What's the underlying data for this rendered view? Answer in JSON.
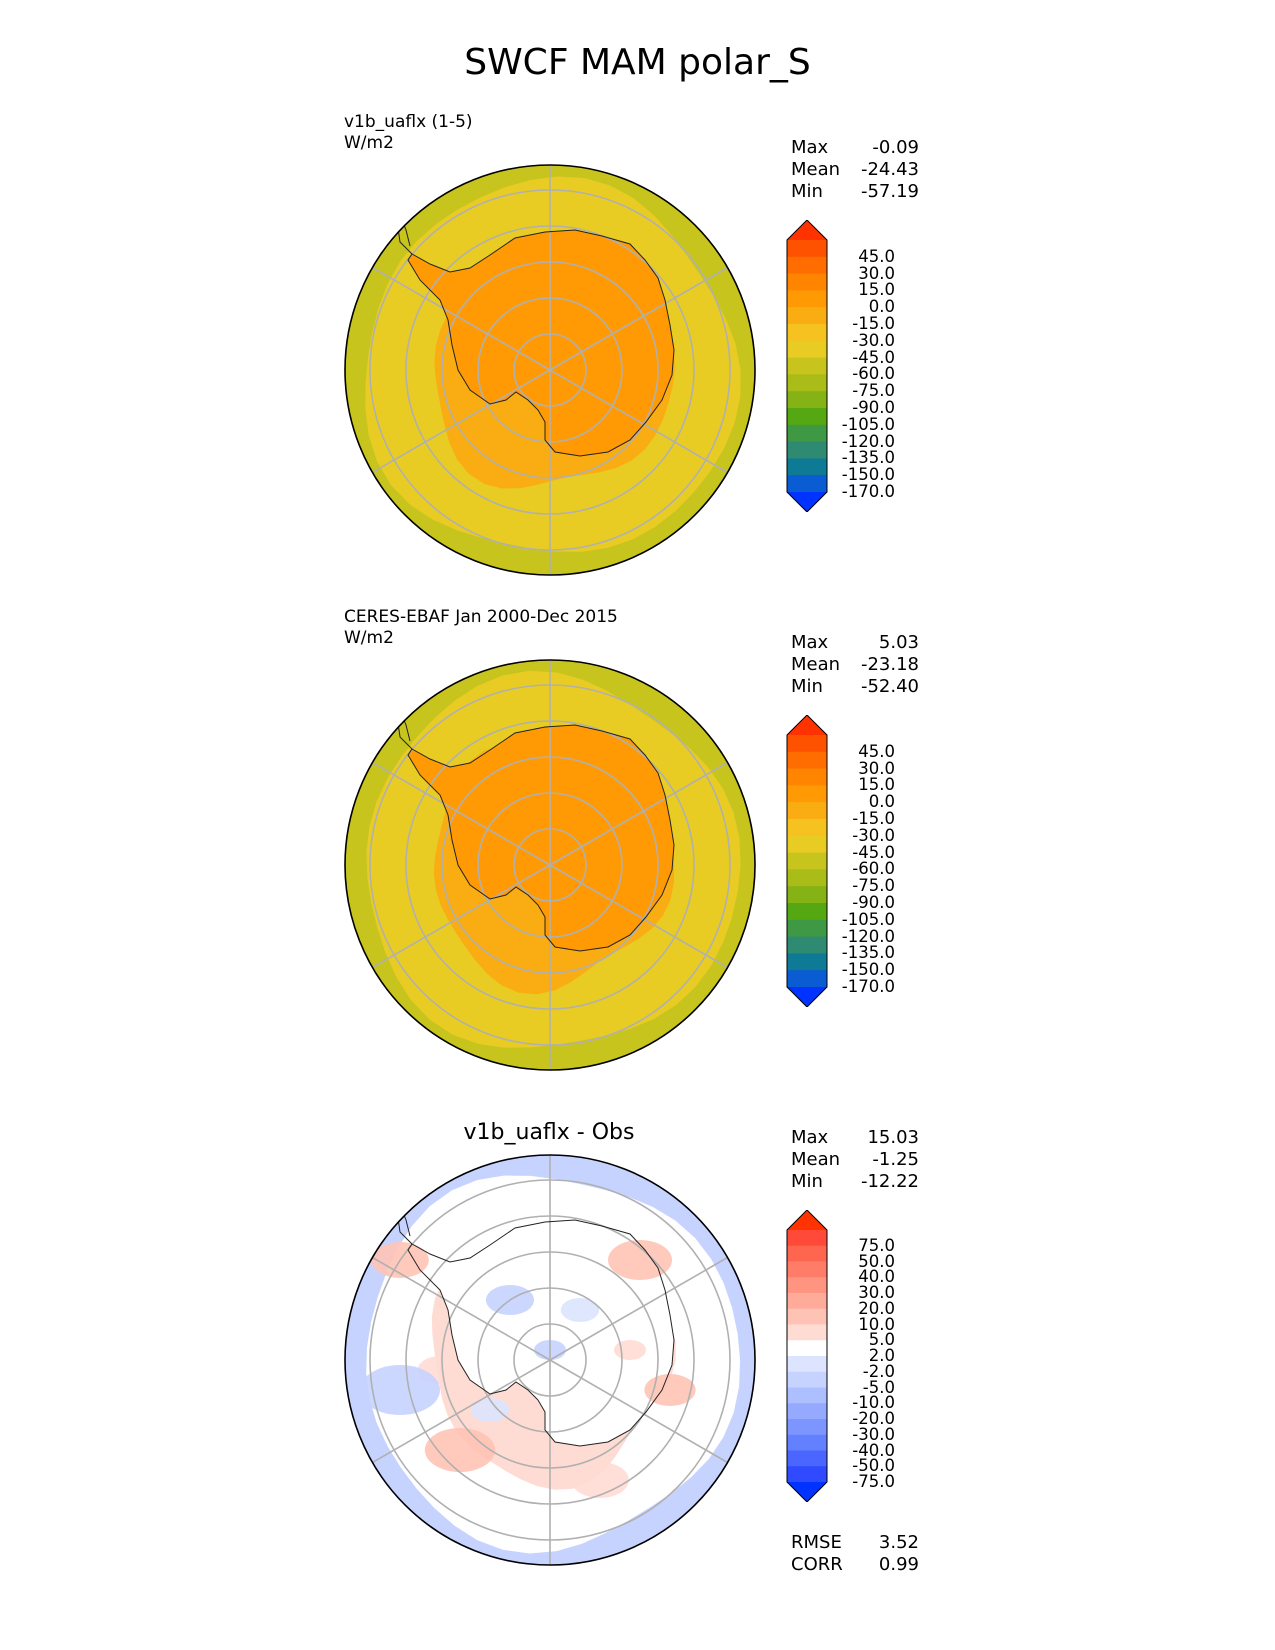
{
  "title": "SWCF MAM polar_S",
  "panels": [
    {
      "label_line1": "v1b_uaflx (1-5)",
      "label_line2": "W/m2",
      "stats": {
        "max_label": "Max",
        "max": "-0.09",
        "mean_label": "Mean",
        "mean": "-24.43",
        "min_label": "Min",
        "min": "-57.19"
      },
      "colorbar": {
        "levels": [
          "45.0",
          "30.0",
          "15.0",
          "0.0",
          "-15.0",
          "-30.0",
          "-45.0",
          "-60.0",
          "-75.0",
          "-90.0",
          "-105.0",
          "-120.0",
          "-135.0",
          "-150.0",
          "-170.0"
        ],
        "colors": [
          "#ff3300",
          "#ff5200",
          "#ff6c00",
          "#ff8400",
          "#ff9a05",
          "#f9ad12",
          "#f5c220",
          "#e8cc24",
          "#c8c41e",
          "#a9bc18",
          "#85b215",
          "#56a812",
          "#3f9843",
          "#2f8a72",
          "#0f7a95",
          "#0a5cd3",
          "#0033ff"
        ]
      },
      "map": {
        "ocean_color": "#e8cc24",
        "outer_band_color": "#c8c41e",
        "inner_band_color": "#f9ad12",
        "continent_color": "#ff9a05"
      }
    },
    {
      "label_line1": "CERES-EBAF Jan 2000-Dec 2015",
      "label_line2": "W/m2",
      "stats": {
        "max_label": "Max",
        "max": "5.03",
        "mean_label": "Mean",
        "mean": "-23.18",
        "min_label": "Min",
        "min": "-52.40"
      },
      "colorbar": {
        "levels": [
          "45.0",
          "30.0",
          "15.0",
          "0.0",
          "-15.0",
          "-30.0",
          "-45.0",
          "-60.0",
          "-75.0",
          "-90.0",
          "-105.0",
          "-120.0",
          "-135.0",
          "-150.0",
          "-170.0"
        ],
        "colors": [
          "#ff3300",
          "#ff5200",
          "#ff6c00",
          "#ff8400",
          "#ff9a05",
          "#f9ad12",
          "#f5c220",
          "#e8cc24",
          "#c8c41e",
          "#a9bc18",
          "#85b215",
          "#56a812",
          "#3f9843",
          "#2f8a72",
          "#0f7a95",
          "#0a5cd3",
          "#0033ff"
        ]
      },
      "map": {
        "ocean_color": "#e8cc24",
        "outer_band_color": "#c8c41e",
        "inner_band_color": "#f9ad12",
        "continent_color": "#ff9a05"
      }
    },
    {
      "title": "v1b_uaflx - Obs",
      "stats": {
        "max_label": "Max",
        "max": "15.03",
        "mean_label": "Mean",
        "mean": "-1.25",
        "min_label": "Min",
        "min": "-12.22"
      },
      "colorbar": {
        "levels": [
          "75.0",
          "50.0",
          "40.0",
          "30.0",
          "20.0",
          "10.0",
          "5.0",
          "2.0",
          "-2.0",
          "-5.0",
          "-10.0",
          "-20.0",
          "-30.0",
          "-40.0",
          "-50.0",
          "-75.0"
        ],
        "colors": [
          "#ff3300",
          "#ff4a3a",
          "#ff6650",
          "#ff7d68",
          "#ff9480",
          "#ffab9a",
          "#ffc3b5",
          "#ffdcd3",
          "#ffffff",
          "#dce4ff",
          "#c6d3ff",
          "#aebfff",
          "#95aaff",
          "#7c95ff",
          "#6380ff",
          "#4a66ff",
          "#2f4aff",
          "#0033ff"
        ]
      },
      "map": {
        "ocean_color": "#ffffff",
        "outer_band_color": "#c6d3ff",
        "inner_band_color": "#ffdcd3",
        "continent_color": "#ffffff"
      },
      "metrics": {
        "rmse_label": "RMSE",
        "rmse": "3.52",
        "corr_label": "CORR",
        "corr": "0.99"
      }
    }
  ]
}
